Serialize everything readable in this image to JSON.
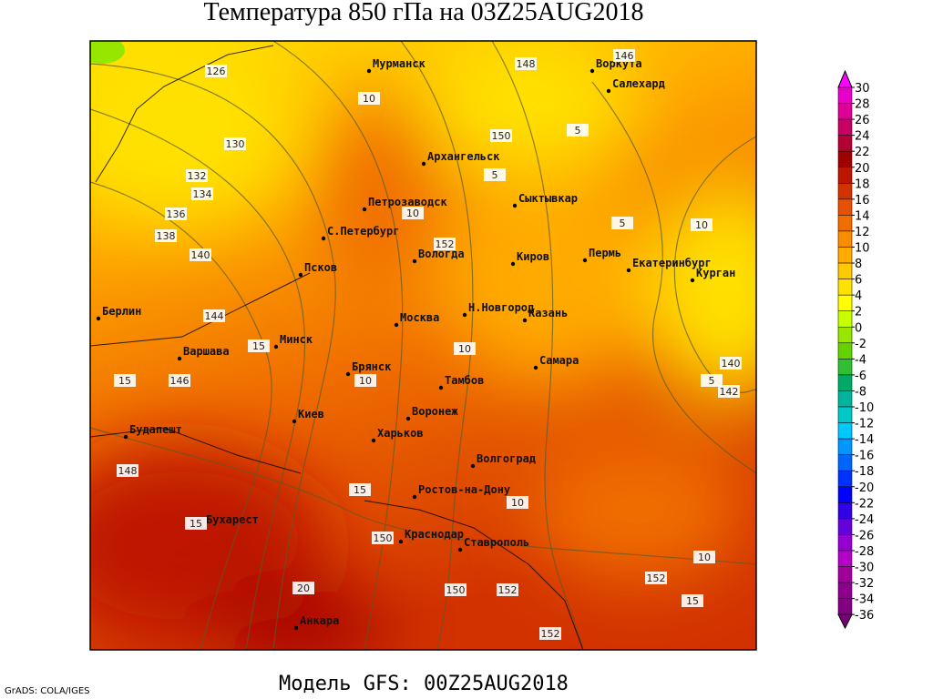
{
  "header": {
    "title": "Температура 850 гПа на 03Z25AUG2018"
  },
  "footer": {
    "model": "Модель GFS: 00Z25AUG2018",
    "credit": "GrADS: COLA/IGES"
  },
  "cities": [
    "Мурманск",
    "Воркута",
    "Салехард",
    "Архангельск",
    "Петрозаводск",
    "Сыктывкар",
    "С.Петербург",
    "Вологда",
    "Киров",
    "Пермь",
    "Екатеринбург",
    "Курган",
    "Псков",
    "Берлин",
    "Москва",
    "Н.Новгород",
    "Казань",
    "Варшава",
    "Минск",
    "Самара",
    "Брянск",
    "Тамбов",
    "Киев",
    "Воронеж",
    "Будапешт",
    "Харьков",
    "Волгоград",
    "Ростов-на-Дону",
    "Бухарест",
    "Краснодар",
    "Ставрополь",
    "Анкара"
  ],
  "contour_labels": [
    126,
    130,
    132,
    134,
    136,
    138,
    140,
    144,
    146,
    148,
    150,
    150,
    152,
    152,
    152,
    152,
    148,
    146,
    150,
    140,
    142,
    10,
    10,
    10,
    10,
    10,
    10,
    10,
    5,
    5,
    5,
    5,
    15,
    15,
    15,
    15,
    15,
    20
  ],
  "colorbar": {
    "ticks": [
      30,
      28,
      26,
      24,
      22,
      20,
      18,
      16,
      14,
      12,
      10,
      8,
      6,
      4,
      2,
      0,
      -2,
      -4,
      -6,
      -8,
      -10,
      -12,
      -14,
      -16,
      -18,
      -20,
      -22,
      -24,
      -26,
      -28,
      -30,
      -32,
      -34,
      -36
    ],
    "colors": [
      "#ff00ff",
      "#e600c8",
      "#dc0096",
      "#c80064",
      "#b40032",
      "#a00000",
      "#be1400",
      "#d23200",
      "#e65000",
      "#f06e00",
      "#fa8c00",
      "#ffaa00",
      "#ffc800",
      "#ffe100",
      "#ffff00",
      "#c8ff00",
      "#96e600",
      "#64d200",
      "#32be32",
      "#00aa64",
      "#00b4a0",
      "#00c8c8",
      "#00c8ff",
      "#0096ff",
      "#0064ff",
      "#0032ff",
      "#0000ff",
      "#3200e6",
      "#6400dc",
      "#9600d2",
      "#b400c8",
      "#a0009a",
      "#8c008c",
      "#800080",
      "#780078"
    ]
  }
}
